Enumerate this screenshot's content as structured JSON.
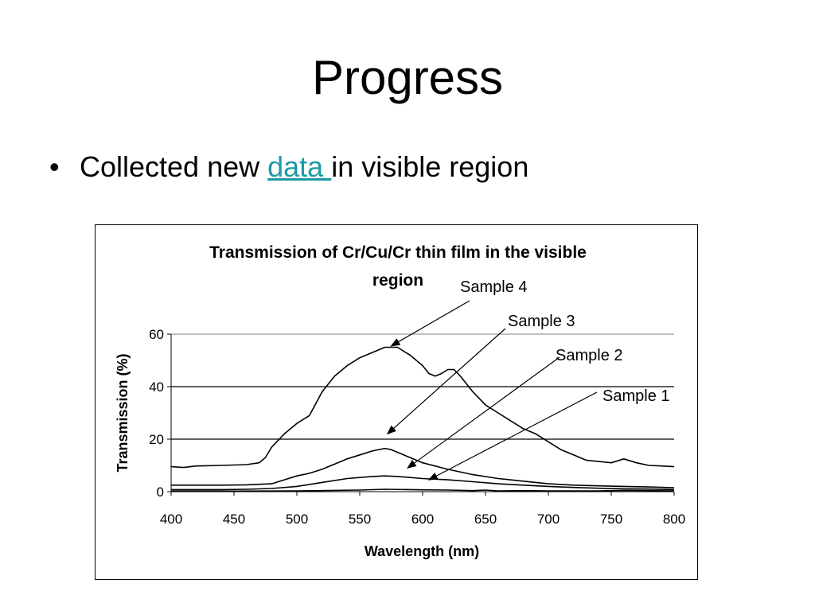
{
  "slide": {
    "title": "Progress",
    "bullet_symbol": "•",
    "bullet_prefix": "Collected new ",
    "bullet_link": "data ",
    "bullet_suffix": "in visible region"
  },
  "colors": {
    "link": "#1a9aa6",
    "line": "#000000"
  },
  "chart_data": {
    "type": "line",
    "title": "Transmission of Cr/Cu/Cr thin film in the visible region",
    "title_lines": [
      "Transmission of Cr/Cu/Cr thin film in the visible",
      "region"
    ],
    "xlabel": "Wavelength (nm)",
    "ylabel": "Transmission (%)",
    "xlim": [
      400,
      800
    ],
    "ylim": [
      0,
      60
    ],
    "x_ticks": [
      400,
      450,
      500,
      550,
      600,
      650,
      700,
      750,
      800
    ],
    "y_ticks": [
      0,
      20,
      40,
      60
    ],
    "grid": "horizontal",
    "legend": "none",
    "annotations": [
      "Sample 4",
      "Sample 3",
      "Sample 2",
      "Sample 1"
    ],
    "series": [
      {
        "name": "Sample 4",
        "x": [
          400,
          410,
          420,
          440,
          460,
          470,
          475,
          480,
          490,
          500,
          510,
          520,
          530,
          540,
          550,
          560,
          570,
          580,
          590,
          600,
          605,
          610,
          615,
          620,
          625,
          630,
          640,
          650,
          660,
          670,
          680,
          690,
          700,
          710,
          720,
          730,
          740,
          750,
          760,
          770,
          780,
          790,
          800
        ],
        "y": [
          9.5,
          9.2,
          9.8,
          10,
          10.3,
          11,
          13,
          17,
          22,
          26,
          29,
          38,
          44,
          48,
          51,
          53,
          55,
          55,
          52,
          48,
          45,
          44,
          45,
          46.5,
          46.5,
          44,
          38,
          33,
          30,
          27,
          24,
          22,
          19,
          16,
          14,
          12,
          11.5,
          11,
          12.5,
          11,
          10,
          9.8,
          9.5
        ]
      },
      {
        "name": "Sample 3",
        "x": [
          400,
          420,
          440,
          460,
          480,
          490,
          500,
          510,
          520,
          530,
          540,
          550,
          560,
          570,
          575,
          580,
          590,
          600,
          620,
          640,
          660,
          680,
          700,
          720,
          740,
          760,
          780,
          800
        ],
        "y": [
          2.5,
          2.5,
          2.5,
          2.6,
          3,
          4.5,
          6,
          7,
          8.5,
          10.5,
          12.5,
          14,
          15.5,
          16.5,
          16,
          15,
          13,
          11,
          8.5,
          6.5,
          5,
          4,
          3,
          2.5,
          2.2,
          2,
          1.8,
          1.5
        ]
      },
      {
        "name": "Sample 2",
        "x": [
          400,
          420,
          440,
          460,
          480,
          500,
          520,
          540,
          560,
          570,
          580,
          600,
          620,
          640,
          660,
          680,
          700,
          720,
          740,
          760,
          780,
          800
        ],
        "y": [
          0.8,
          0.8,
          0.8,
          0.9,
          1.2,
          2,
          3.5,
          5,
          5.8,
          6,
          5.8,
          5,
          4.5,
          3.8,
          3,
          2.5,
          2,
          1.6,
          1.3,
          1.1,
          1,
          0.8
        ]
      },
      {
        "name": "Sample 1",
        "x": [
          400,
          450,
          500,
          550,
          570,
          600,
          620,
          640,
          650,
          660,
          680,
          700,
          720,
          740,
          760,
          780,
          800
        ],
        "y": [
          0.2,
          0.2,
          0.3,
          0.6,
          0.9,
          0.7,
          0.6,
          0.4,
          0.6,
          0.3,
          0.4,
          0.3,
          0.3,
          0.3,
          0.5,
          0.4,
          0.3
        ]
      }
    ]
  }
}
